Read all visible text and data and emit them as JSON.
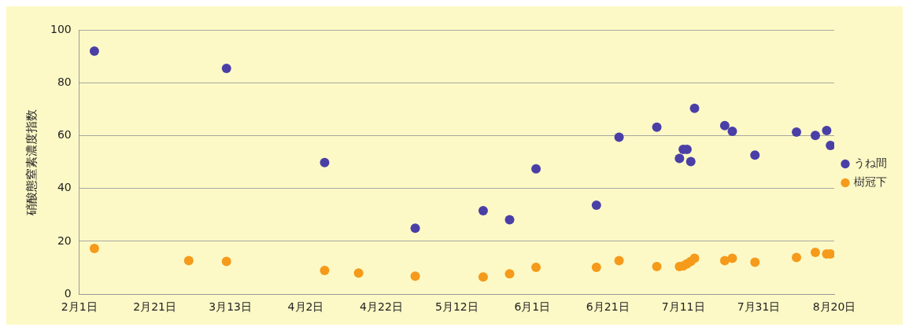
{
  "chart_data": {
    "type": "scatter",
    "ylabel": "硝酸態窒素濃度指数",
    "xlim": [
      "--02-01",
      "--08-20"
    ],
    "xticks": [
      {
        "value": "--02-01",
        "label": "2月1日"
      },
      {
        "value": "--02-21",
        "label": "2月21日"
      },
      {
        "value": "--03-13",
        "label": "3月13日"
      },
      {
        "value": "--04-02",
        "label": "4月2日"
      },
      {
        "value": "--04-22",
        "label": "4月22日"
      },
      {
        "value": "--05-12",
        "label": "5月12日"
      },
      {
        "value": "--06-01",
        "label": "6月1日"
      },
      {
        "value": "--06-21",
        "label": "6月21日"
      },
      {
        "value": "--07-11",
        "label": "7月11日"
      },
      {
        "value": "--07-31",
        "label": "7月31日"
      },
      {
        "value": "--08-20",
        "label": "8月20日"
      }
    ],
    "ylim": [
      0,
      100
    ],
    "yticks": [
      0,
      20,
      40,
      60,
      80,
      100
    ],
    "grid": "y",
    "legend": "right",
    "marker": "circle",
    "series": [
      {
        "name": "うね間",
        "color": "#4a3fa6",
        "x": [
          "--02-05",
          "--03-12",
          "--04-07",
          "--05-01",
          "--05-19",
          "--05-26",
          "--06-02",
          "--06-18",
          "--06-24",
          "--07-04",
          "--07-10",
          "--07-11",
          "--07-12",
          "--07-13",
          "--07-14",
          "--07-22",
          "--07-24",
          "--07-30",
          "--08-10",
          "--08-15",
          "--08-18",
          "--08-19"
        ],
        "values": [
          92,
          85.4,
          49.8,
          25,
          31.6,
          28.2,
          47.4,
          33.7,
          59.4,
          63.2,
          51.4,
          54.8,
          54.8,
          50.2,
          70.3,
          63.8,
          61.6,
          52.6,
          61.3,
          60.1,
          61.9,
          56.3
        ]
      },
      {
        "name": "樹冠下",
        "color": "#f59a1a",
        "x": [
          "--02-05",
          "--03-02",
          "--03-12",
          "--04-07",
          "--04-16",
          "--05-01",
          "--05-19",
          "--05-26",
          "--06-02",
          "--06-18",
          "--06-24",
          "--07-04",
          "--07-10",
          "--07-11",
          "--07-12",
          "--07-13",
          "--07-14",
          "--07-22",
          "--07-24",
          "--07-30",
          "--08-10",
          "--08-15",
          "--08-18",
          "--08-19"
        ],
        "values": [
          17.3,
          12.7,
          12.4,
          9,
          8,
          6.8,
          6.5,
          7.7,
          10.2,
          10.2,
          12.7,
          10.5,
          10.5,
          10.7,
          11.5,
          12.4,
          13.6,
          12.7,
          13.6,
          12.1,
          13.9,
          15.8,
          15.2,
          15.2
        ]
      }
    ]
  }
}
